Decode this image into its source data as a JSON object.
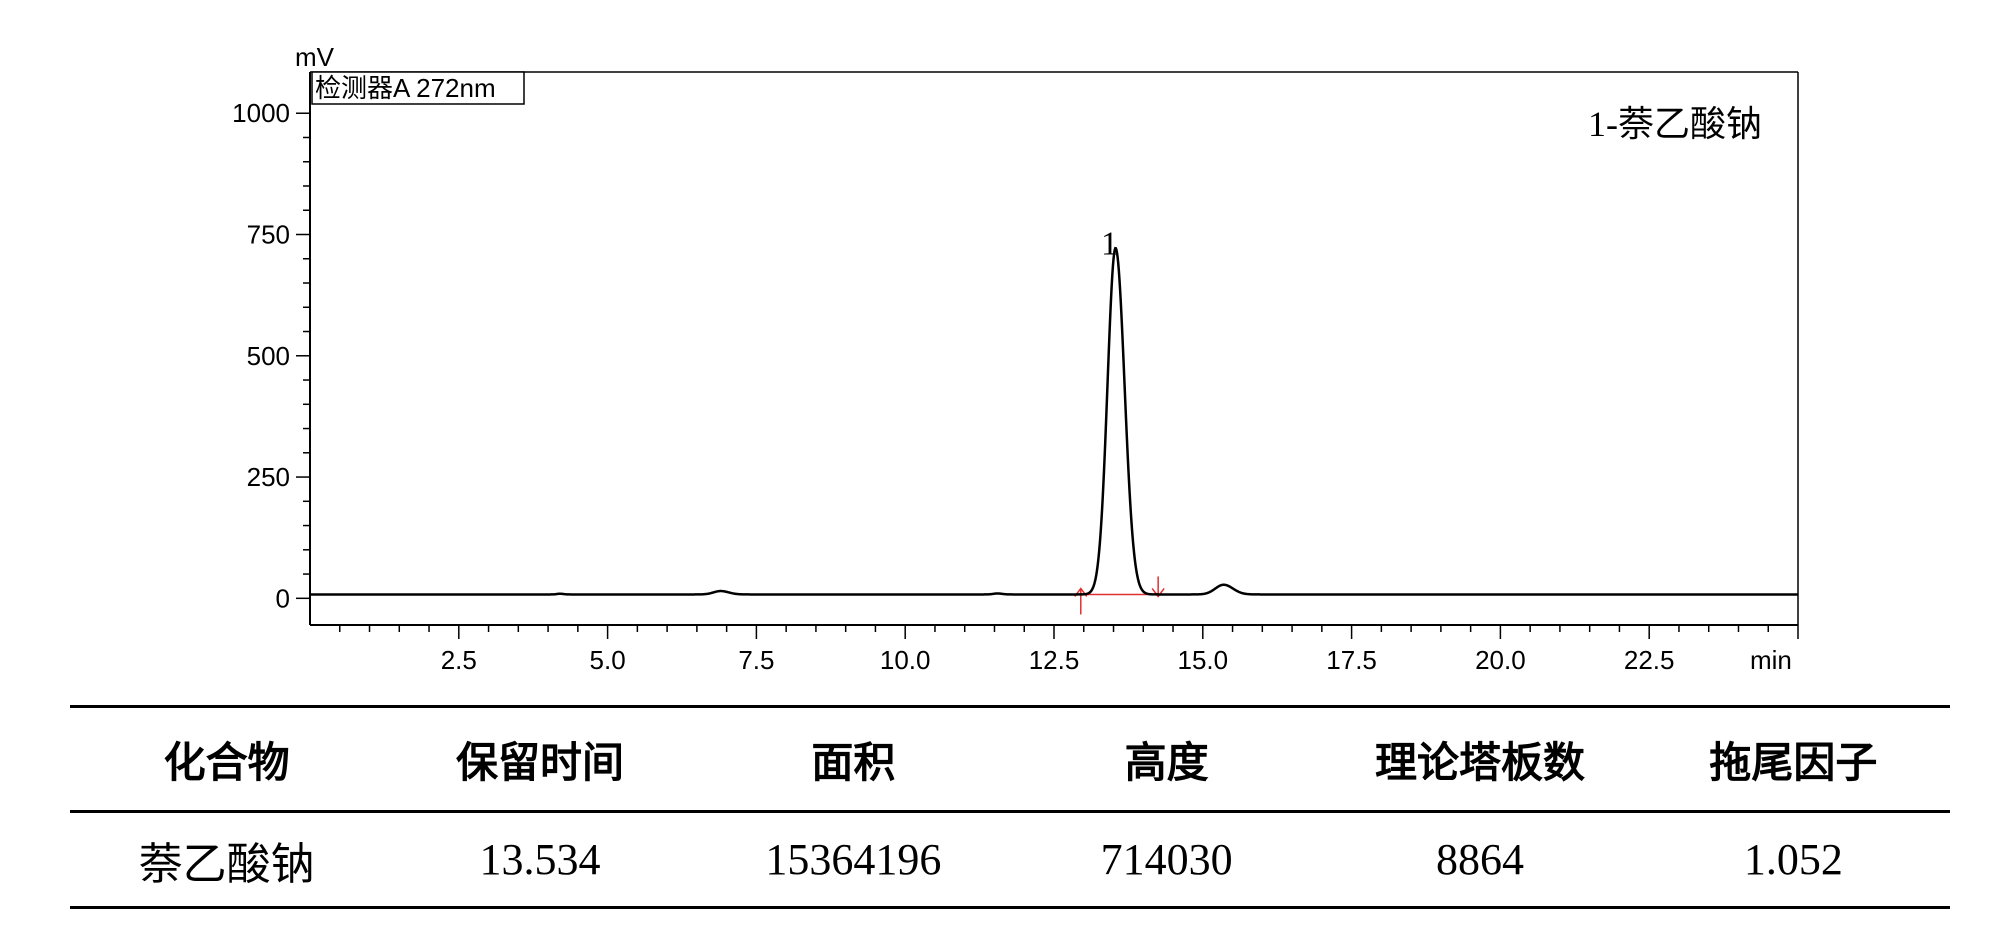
{
  "chart_data": {
    "type": "line",
    "ylabel": "mV",
    "xlabel": "min",
    "detector_label": "检测器A 272nm",
    "legend_text": "1-萘乙酸钠",
    "xlim": [
      0,
      25
    ],
    "ylim": [
      -55,
      1085
    ],
    "x_ticks": [
      2.5,
      5.0,
      7.5,
      10.0,
      12.5,
      15.0,
      17.5,
      20.0,
      22.5
    ],
    "x_tick_labels": [
      "2.5",
      "5.0",
      "7.5",
      "10.0",
      "12.5",
      "15.0",
      "17.5",
      "20.0",
      "22.5"
    ],
    "y_ticks": [
      0,
      250,
      500,
      750,
      1000
    ],
    "y_tick_labels": [
      "0",
      "250",
      "500",
      "750",
      "1000"
    ],
    "baseline_mv": 8,
    "series": [
      {
        "peaks": [
          {
            "rt": 4.2,
            "height": 1.5,
            "sigma": 0.05
          },
          {
            "rt": 6.9,
            "height": 7,
            "sigma": 0.12
          },
          {
            "rt": 11.55,
            "height": 2,
            "sigma": 0.07
          },
          {
            "rt": 13.534,
            "height": 714,
            "sigma": 0.135
          },
          {
            "rt": 15.35,
            "height": 20,
            "sigma": 0.14
          }
        ]
      }
    ],
    "peak_labels": [
      {
        "rt": 13.534,
        "height": 750,
        "text": "1"
      }
    ],
    "integration": {
      "start": 12.95,
      "end": 14.25,
      "level": 8,
      "color": "#e03030"
    }
  },
  "table": {
    "headers": [
      "化合物",
      "保留时间",
      "面积",
      "高度",
      "理论塔板数",
      "拖尾因子"
    ],
    "rows": [
      [
        "萘乙酸钠",
        "13.534",
        "15364196",
        "714030",
        "8864",
        "1.052"
      ]
    ]
  }
}
